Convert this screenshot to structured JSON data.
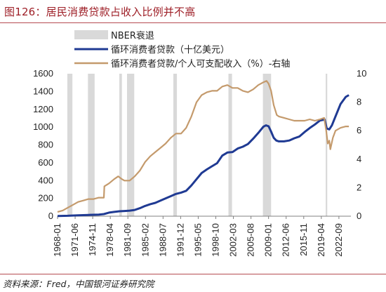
{
  "header": {
    "title": "图126：居民消费贷款占收入比例并不高"
  },
  "footer": {
    "source": "资料来源：Fred，中国银河证券研究院"
  },
  "colors": {
    "title": "#9e1f27",
    "rule": "#b64b51",
    "recession": "#d9d9d9",
    "credit": "#1f3a93",
    "ratio": "#c49a6c"
  },
  "chart_data": {
    "type": "line",
    "legend": [
      {
        "key": "nber",
        "label": "NBER衰退"
      },
      {
        "key": "credit",
        "label": "循环消费者贷款（十亿美元）"
      },
      {
        "key": "ratio",
        "label": "循环消费者贷款/个人可支配收入（%）-右轴"
      }
    ],
    "x_ticks": [
      "1968-01",
      "1971-06",
      "1974-11",
      "1978-04",
      "1981-09",
      "1985-02",
      "1988-07",
      "1991-12",
      "1995-05",
      "1998-10",
      "2002-03",
      "2005-08",
      "2009-01",
      "2012-06",
      "2015-11",
      "2019-04",
      "2022-09"
    ],
    "x_range": [
      1968.0,
      2025.0
    ],
    "left_axis": {
      "ticks": [
        0,
        200,
        400,
        600,
        800,
        1000,
        1200,
        1400,
        1600
      ],
      "range": [
        0,
        1600
      ]
    },
    "right_axis": {
      "ticks": [
        0,
        2,
        4,
        6,
        8,
        10
      ],
      "range": [
        0,
        10
      ]
    },
    "recessions": [
      [
        1969.9,
        1970.9
      ],
      [
        1973.9,
        1975.2
      ],
      [
        1980.0,
        1980.5
      ],
      [
        1981.5,
        1982.9
      ],
      [
        1990.5,
        1991.2
      ],
      [
        2001.2,
        2001.9
      ],
      [
        2007.9,
        2009.5
      ],
      [
        2020.1,
        2020.4
      ]
    ],
    "series": [
      {
        "key": "credit",
        "name": "循环消费者贷款（十亿美元）",
        "axis": "left",
        "points": [
          [
            1968.0,
            2
          ],
          [
            1970.0,
            5
          ],
          [
            1972.0,
            10
          ],
          [
            1974.0,
            14
          ],
          [
            1976.0,
            18
          ],
          [
            1977.0,
            24
          ],
          [
            1978.0,
            40
          ],
          [
            1979.0,
            48
          ],
          [
            1980.0,
            55
          ],
          [
            1981.0,
            58
          ],
          [
            1982.0,
            62
          ],
          [
            1983.0,
            70
          ],
          [
            1984.0,
            90
          ],
          [
            1985.0,
            115
          ],
          [
            1986.0,
            135
          ],
          [
            1987.0,
            150
          ],
          [
            1988.0,
            175
          ],
          [
            1989.0,
            200
          ],
          [
            1990.0,
            225
          ],
          [
            1991.0,
            250
          ],
          [
            1992.0,
            265
          ],
          [
            1993.0,
            285
          ],
          [
            1994.0,
            345
          ],
          [
            1995.0,
            415
          ],
          [
            1996.0,
            485
          ],
          [
            1997.0,
            525
          ],
          [
            1998.0,
            560
          ],
          [
            1999.0,
            595
          ],
          [
            2000.0,
            680
          ],
          [
            2001.0,
            715
          ],
          [
            2002.0,
            720
          ],
          [
            2003.0,
            760
          ],
          [
            2004.0,
            780
          ],
          [
            2005.0,
            810
          ],
          [
            2006.0,
            870
          ],
          [
            2007.0,
            935
          ],
          [
            2008.0,
            1005
          ],
          [
            2008.5,
            1020
          ],
          [
            2009.0,
            1010
          ],
          [
            2009.5,
            950
          ],
          [
            2010.0,
            880
          ],
          [
            2010.5,
            850
          ],
          [
            2011.0,
            840
          ],
          [
            2012.0,
            840
          ],
          [
            2013.0,
            850
          ],
          [
            2014.0,
            875
          ],
          [
            2015.0,
            895
          ],
          [
            2016.0,
            945
          ],
          [
            2017.0,
            990
          ],
          [
            2018.0,
            1030
          ],
          [
            2019.0,
            1075
          ],
          [
            2019.9,
            1085
          ],
          [
            2020.3,
            985
          ],
          [
            2020.8,
            975
          ],
          [
            2021.3,
            1020
          ],
          [
            2022.0,
            1120
          ],
          [
            2023.0,
            1260
          ],
          [
            2024.0,
            1340
          ],
          [
            2024.6,
            1360
          ]
        ]
      },
      {
        "key": "ratio",
        "name": "循环消费者贷款/个人可支配收入（%）-右轴",
        "axis": "right",
        "points": [
          [
            1968.0,
            0.3
          ],
          [
            1969.0,
            0.4
          ],
          [
            1970.0,
            0.6
          ],
          [
            1971.0,
            0.8
          ],
          [
            1972.0,
            1.0
          ],
          [
            1973.0,
            1.1
          ],
          [
            1974.0,
            1.2
          ],
          [
            1975.0,
            1.2
          ],
          [
            1976.0,
            1.3
          ],
          [
            1977.0,
            1.3
          ],
          [
            1977.1,
            2.1
          ],
          [
            1978.0,
            2.3
          ],
          [
            1979.0,
            2.6
          ],
          [
            1979.8,
            2.8
          ],
          [
            1980.5,
            2.6
          ],
          [
            1981.0,
            2.5
          ],
          [
            1982.0,
            2.5
          ],
          [
            1983.0,
            2.8
          ],
          [
            1984.0,
            3.2
          ],
          [
            1985.0,
            3.8
          ],
          [
            1986.0,
            4.2
          ],
          [
            1987.0,
            4.5
          ],
          [
            1988.0,
            4.8
          ],
          [
            1989.0,
            5.1
          ],
          [
            1990.0,
            5.5
          ],
          [
            1991.0,
            5.8
          ],
          [
            1992.0,
            5.8
          ],
          [
            1993.0,
            6.2
          ],
          [
            1994.0,
            7.0
          ],
          [
            1995.0,
            8.0
          ],
          [
            1996.0,
            8.5
          ],
          [
            1997.0,
            8.7
          ],
          [
            1998.0,
            8.8
          ],
          [
            1999.0,
            8.8
          ],
          [
            2000.0,
            9.1
          ],
          [
            2001.0,
            9.2
          ],
          [
            2002.0,
            9.0
          ],
          [
            2003.0,
            9.0
          ],
          [
            2004.0,
            8.8
          ],
          [
            2005.0,
            8.7
          ],
          [
            2006.0,
            8.9
          ],
          [
            2007.0,
            9.2
          ],
          [
            2008.0,
            9.4
          ],
          [
            2008.6,
            9.5
          ],
          [
            2009.0,
            9.3
          ],
          [
            2009.5,
            8.8
          ],
          [
            2010.0,
            7.8
          ],
          [
            2010.6,
            7.1
          ],
          [
            2011.0,
            7.0
          ],
          [
            2012.0,
            6.9
          ],
          [
            2013.0,
            6.8
          ],
          [
            2014.0,
            6.7
          ],
          [
            2015.0,
            6.7
          ],
          [
            2016.0,
            6.7
          ],
          [
            2017.0,
            6.8
          ],
          [
            2018.0,
            6.7
          ],
          [
            2019.0,
            6.8
          ],
          [
            2019.8,
            6.9
          ],
          [
            2020.2,
            6.0
          ],
          [
            2020.5,
            5.1
          ],
          [
            2020.8,
            5.3
          ],
          [
            2021.0,
            4.7
          ],
          [
            2021.5,
            5.5
          ],
          [
            2022.0,
            6.0
          ],
          [
            2023.0,
            6.2
          ],
          [
            2024.0,
            6.3
          ],
          [
            2024.6,
            6.3
          ]
        ]
      }
    ]
  }
}
